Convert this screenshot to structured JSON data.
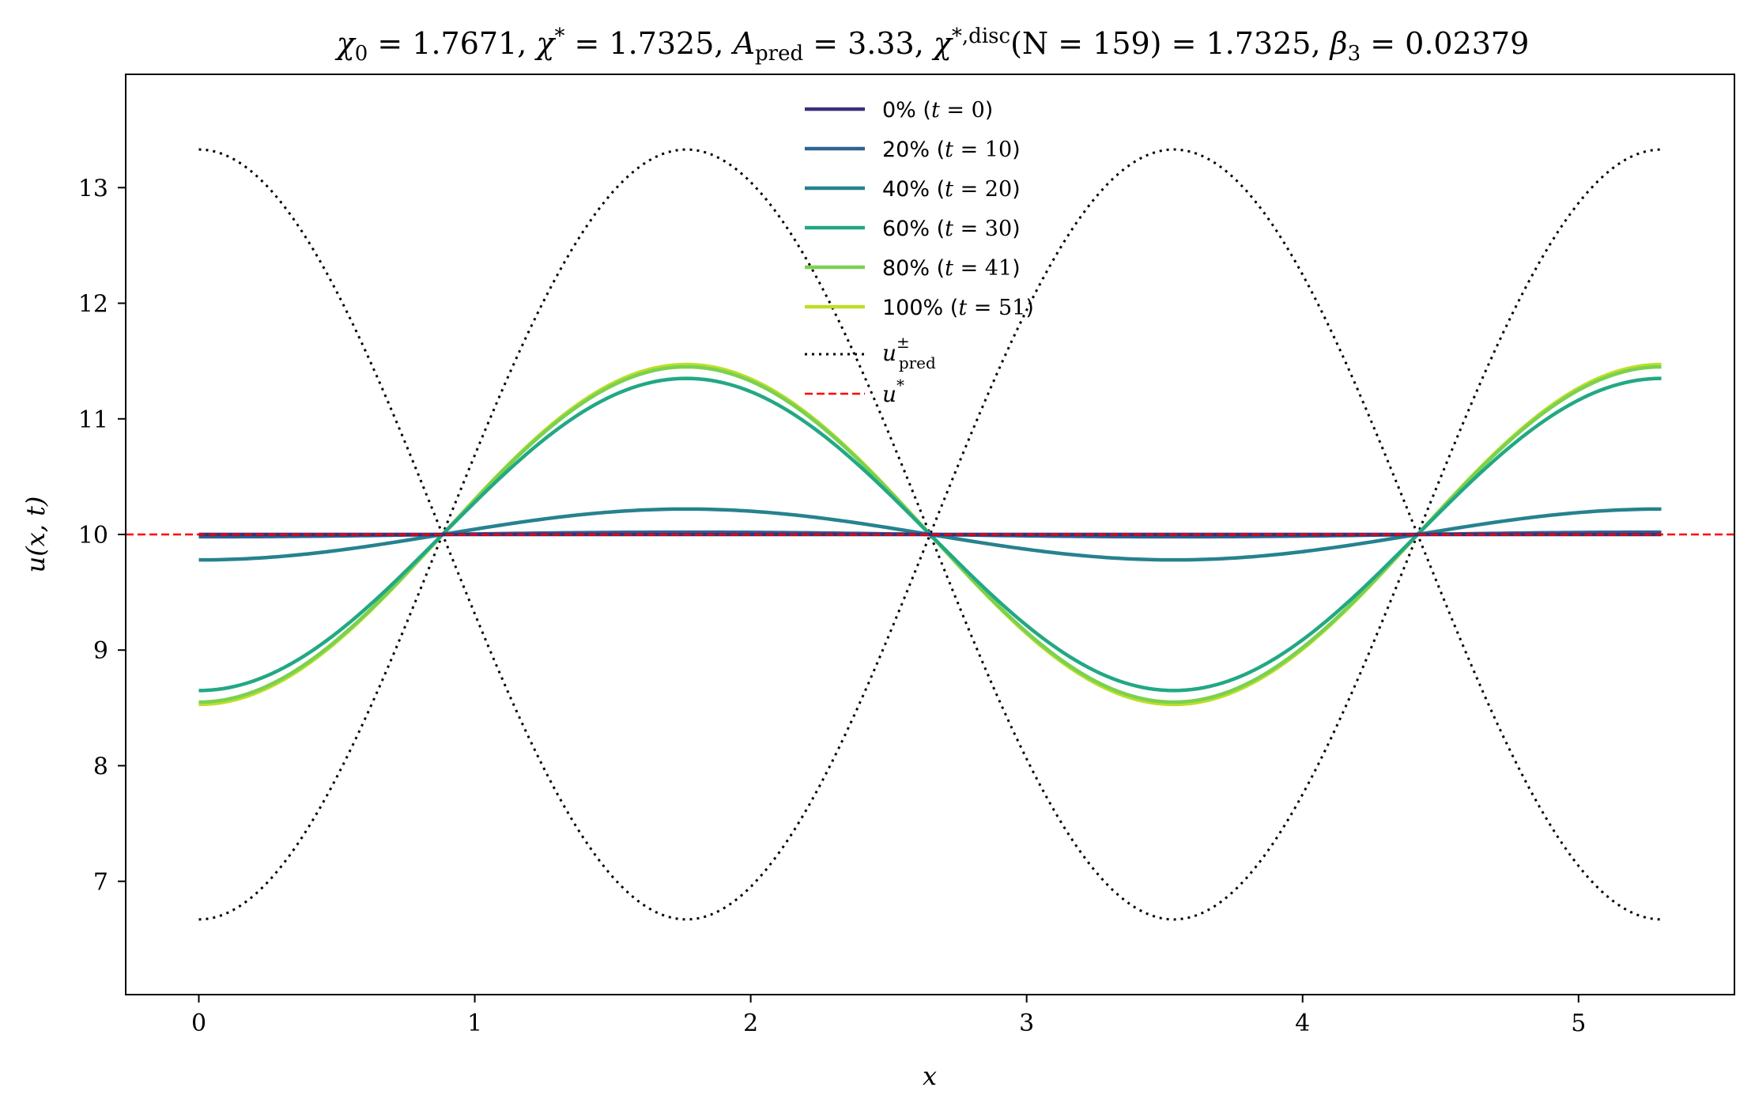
{
  "chart_data": {
    "type": "line",
    "title": "χ₀ = 1.7671,  χ* = 1.7325,  A_pred = 3.33,  χ*,disc(N = 159) = 1.7325,  β₃ = 0.02379",
    "title_parts": {
      "chi0": "χ",
      "chi0_sub": "0",
      "chi0_val": " = 1.7671,  ",
      "chistar": "χ",
      "chistar_sup": "*",
      "chistar_val": " = 1.7325,  ",
      "apred": "A",
      "apred_sub": "pred",
      "apred_val": " = 3.33,  ",
      "chidisc": "χ",
      "chidisc_sup": "*,disc",
      "chidisc_val": "(N = 159) = 1.7325,  ",
      "beta": "β",
      "beta_sub": "3",
      "beta_val": " = 0.02379"
    },
    "xlabel": "x",
    "ylabel": "u(x, t)",
    "xlim": [
      -0.265,
      5.565
    ],
    "ylim": [
      6.02,
      13.98
    ],
    "xticks": [
      0,
      1,
      2,
      3,
      4,
      5
    ],
    "yticks": [
      7,
      8,
      9,
      10,
      11,
      12,
      13
    ],
    "domain_length": 5.3,
    "grid": false,
    "legend_position": "top-center",
    "u_star": 10,
    "pred_amplitude": 3.33,
    "series": [
      {
        "name": "0% (t = 0)",
        "pct": "0%",
        "tval": "0",
        "color": "#3b2f7b",
        "amplitude": 0.0
      },
      {
        "name": "20% (t = 10)",
        "pct": "20%",
        "tval": "10",
        "color": "#2e6494",
        "amplitude": 0.02
      },
      {
        "name": "40% (t = 20)",
        "pct": "40%",
        "tval": "20",
        "color": "#26828e",
        "amplitude": 0.22
      },
      {
        "name": "60% (t = 30)",
        "pct": "60%",
        "tval": "30",
        "color": "#22a884",
        "amplitude": 1.35
      },
      {
        "name": "80% (t = 41)",
        "pct": "80%",
        "tval": "41",
        "color": "#7ad151",
        "amplitude": 1.45
      },
      {
        "name": "100% (t = 51)",
        "pct": "100%",
        "tval": "51",
        "color": "#bddf26",
        "amplitude": 1.47
      }
    ],
    "reference_lines": [
      {
        "name": "u±pred",
        "base": "u",
        "sup": "±",
        "sub": "pred",
        "style": "dotted",
        "color": "#000000"
      },
      {
        "name": "u*",
        "base": "u",
        "sup": "*",
        "style": "dashed",
        "color": "#ff0000"
      }
    ]
  }
}
